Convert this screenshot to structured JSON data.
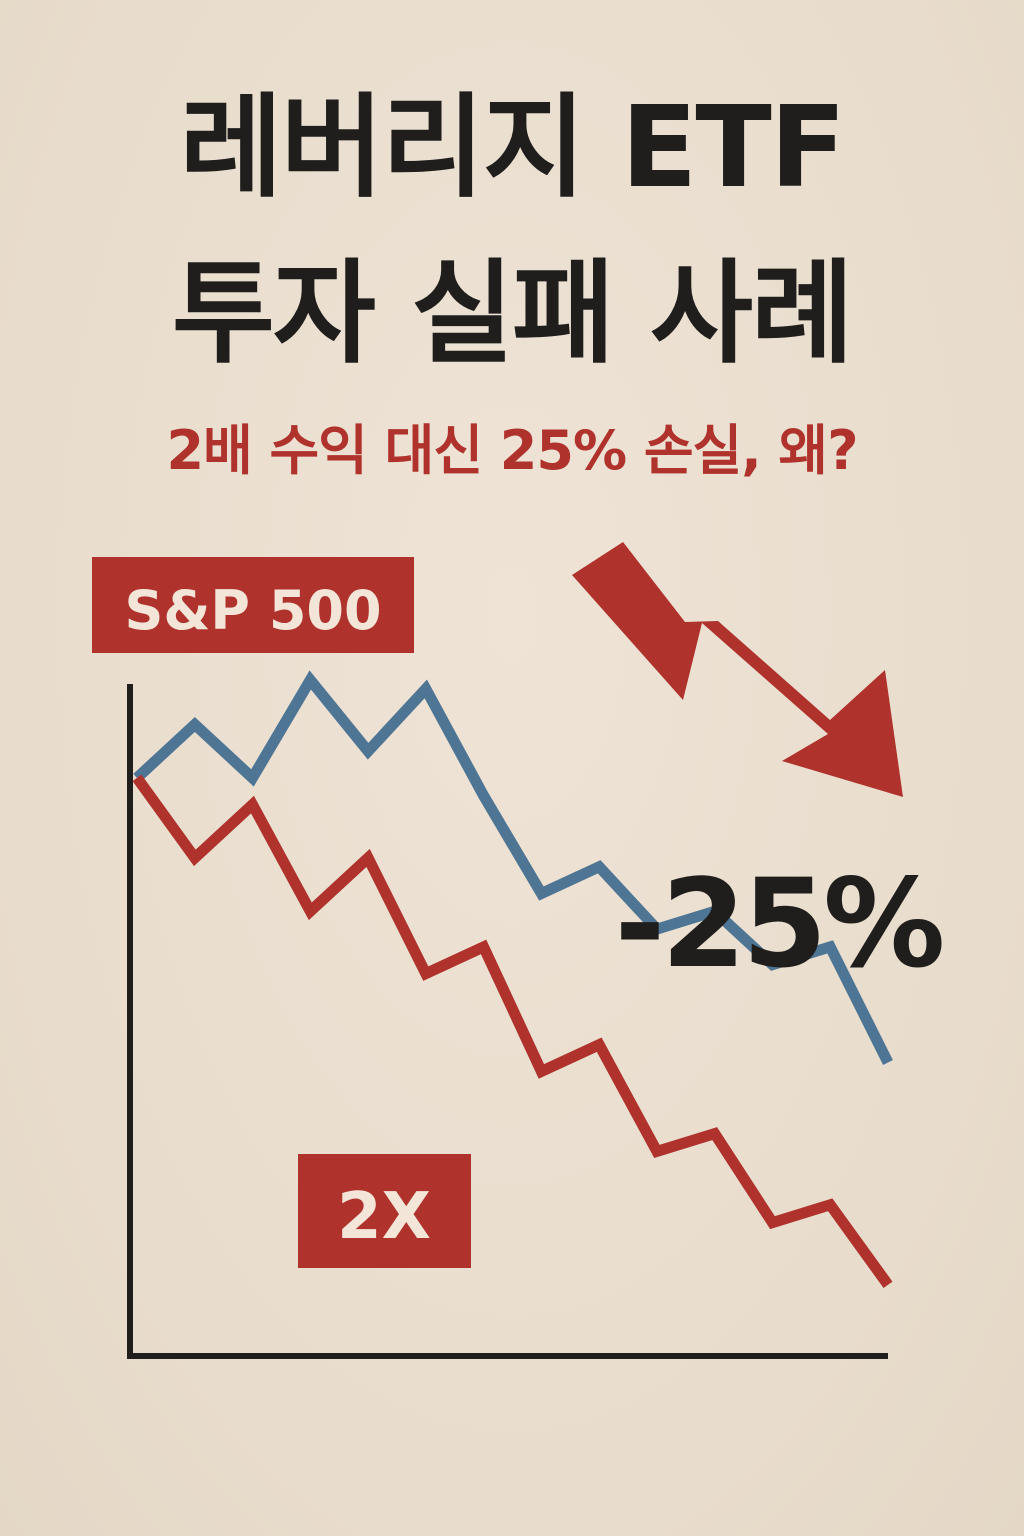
{
  "header": {
    "title_line1": "레버리지 ETF",
    "title_line2": "투자 실패 사례",
    "subtitle": "2배 수익 대신 25% 손실, 왜?"
  },
  "colors": {
    "background": "#ebdfd0",
    "text": "#1f1e1c",
    "accent_red": "#b0322c",
    "series_blue": "#4f7595",
    "label_text": "#f3e6d8"
  },
  "chart_data": {
    "type": "line",
    "x": [
      0,
      1,
      2,
      3,
      4,
      5,
      6,
      7,
      8,
      9,
      10,
      11,
      12,
      13
    ],
    "series": [
      {
        "name": "S&P 500",
        "color": "#4f7595",
        "values": [
          100,
          106,
          100,
          111,
          103,
          110,
          98,
          87,
          90,
          83,
          85,
          79,
          81,
          68
        ]
      },
      {
        "name": "2X",
        "color": "#b0322c",
        "values": [
          100,
          91,
          97,
          85,
          91,
          78,
          81,
          67,
          70,
          58,
          60,
          50,
          52,
          43
        ]
      }
    ],
    "ylim": [
      35,
      120
    ],
    "xlim": [
      0,
      13
    ],
    "grid": false,
    "annotations": {
      "change_label": "-25%",
      "arrow_icon": "down-trend-arrow-icon"
    }
  }
}
